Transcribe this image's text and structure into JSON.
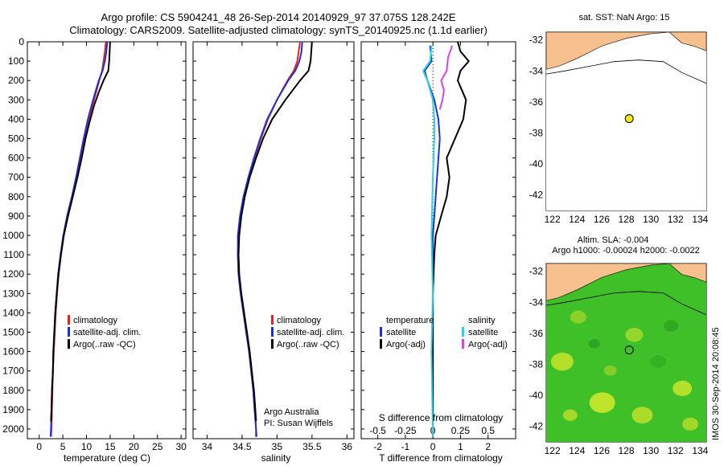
{
  "header": {
    "title_line1": "Argo profile: CS 5904241_48 26-Sep-2014 20140929_97 37.075S 128.242E",
    "title_line2": "Climatology: CARS2009. Satellite-adjusted climatology: synTS_20140925.nc (1.1d earlier)"
  },
  "colors": {
    "climatology": "#e8231e",
    "satellite_adj": "#1f2fd6",
    "argo": "#000000",
    "satellite_salinity": "#27d3e6",
    "argo_salinity_adj": "#e23ee0",
    "land": "#f7c08f",
    "marker_yellow": "#f0e61a"
  },
  "panels": {
    "temp": {
      "xlabel": "temperature (deg C)",
      "legend": [
        "climatology",
        "satellite-adj. clim.",
        "Argo(..raw -QC)"
      ]
    },
    "sal": {
      "xlabel": "salinity",
      "legend": [
        "climatology",
        "satellite-adj. clim.",
        "Argo(..raw -QC)"
      ],
      "credit_line1": "Argo Australia",
      "credit_line2": "PI: Susan Wijffels"
    },
    "diff": {
      "xlabel": "T difference from climatology",
      "s_label": "S difference from climatology",
      "legend_temperature_heading": "temperature",
      "legend_salinity_heading": "salinity",
      "legend_t_items": [
        "satellite",
        "Argo(-adj)"
      ],
      "legend_s_items": [
        "satellite",
        "Argo(-adj)"
      ]
    },
    "map_sst": {
      "title": "sat. SST: NaN Argo: 15"
    },
    "map_sla": {
      "title_line1": "Altim. SLA: -0.004",
      "title_line2": "Argo h1000: -0.00024 h2000: -0.0022",
      "side_label": "IMOS 30-Sep-2014 20:08:45"
    }
  },
  "chart_data": [
    {
      "type": "line",
      "title": "",
      "xlabel": "temperature (deg C)",
      "ylabel": "",
      "xlim": [
        -2.5,
        31
      ],
      "ylim": [
        2050,
        0
      ],
      "xticks": [
        0,
        5,
        10,
        15,
        20,
        25,
        30
      ],
      "yticks": [
        0,
        100,
        200,
        300,
        400,
        500,
        600,
        700,
        800,
        900,
        1000,
        1100,
        1200,
        1300,
        1400,
        1500,
        1600,
        1700,
        1800,
        1900,
        2000
      ],
      "series": [
        {
          "name": "climatology",
          "color": "#e8231e",
          "points": [
            [
              14.1,
              0
            ],
            [
              13.9,
              50
            ],
            [
              13.6,
              100
            ],
            [
              13.3,
              150
            ],
            [
              12.7,
              200
            ],
            [
              11.6,
              300
            ],
            [
              10.5,
              400
            ],
            [
              9.6,
              500
            ],
            [
              8.8,
              600
            ],
            [
              8.0,
              700
            ],
            [
              7.0,
              800
            ],
            [
              6.0,
              900
            ],
            [
              5.2,
              1000
            ],
            [
              4.6,
              1100
            ],
            [
              4.1,
              1200
            ],
            [
              3.8,
              1300
            ],
            [
              3.5,
              1400
            ],
            [
              3.3,
              1500
            ],
            [
              3.1,
              1600
            ],
            [
              2.9,
              1700
            ],
            [
              2.8,
              1800
            ],
            [
              2.7,
              1900
            ],
            [
              2.6,
              2000
            ],
            [
              2.5,
              2040
            ]
          ]
        },
        {
          "name": "satellite-adj. clim.",
          "color": "#1f2fd6",
          "points": [
            [
              14.4,
              0
            ],
            [
              14.2,
              50
            ],
            [
              13.9,
              100
            ],
            [
              13.4,
              150
            ],
            [
              12.6,
              200
            ],
            [
              11.4,
              300
            ],
            [
              10.3,
              400
            ],
            [
              9.4,
              500
            ],
            [
              8.6,
              600
            ],
            [
              7.8,
              700
            ],
            [
              6.9,
              800
            ],
            [
              5.9,
              900
            ],
            [
              5.1,
              1000
            ],
            [
              4.5,
              1100
            ],
            [
              4.0,
              1200
            ],
            [
              3.7,
              1300
            ],
            [
              3.4,
              1400
            ],
            [
              3.2,
              1500
            ],
            [
              3.0,
              1600
            ],
            [
              2.9,
              1700
            ],
            [
              2.7,
              1800
            ],
            [
              2.6,
              1900
            ],
            [
              2.5,
              2000
            ],
            [
              2.4,
              2040
            ]
          ]
        },
        {
          "name": "Argo(..raw -QC)",
          "color": "#000000",
          "points": [
            [
              15.0,
              0
            ],
            [
              14.8,
              100
            ],
            [
              14.6,
              150
            ],
            [
              13.6,
              200
            ],
            [
              12.6,
              260
            ],
            [
              11.6,
              330
            ],
            [
              10.6,
              420
            ],
            [
              9.8,
              500
            ],
            [
              9.0,
              600
            ],
            [
              8.1,
              700
            ],
            [
              7.1,
              800
            ],
            [
              6.1,
              900
            ],
            [
              5.2,
              1000
            ],
            [
              4.6,
              1100
            ],
            [
              4.1,
              1200
            ],
            [
              3.7,
              1300
            ],
            [
              3.4,
              1400
            ],
            [
              3.2,
              1500
            ],
            [
              3.0,
              1600
            ],
            [
              2.9,
              1700
            ],
            [
              2.7,
              1800
            ],
            [
              2.6,
              1900
            ],
            [
              2.5,
              1960
            ]
          ]
        }
      ]
    },
    {
      "type": "line",
      "title": "",
      "xlabel": "salinity",
      "ylabel": "",
      "xlim": [
        33.8,
        36.1
      ],
      "ylim": [
        2050,
        0
      ],
      "xticks": [
        34,
        34.5,
        35,
        35.5,
        36
      ],
      "series": [
        {
          "name": "climatology",
          "color": "#e8231e",
          "points": [
            [
              35.33,
              0
            ],
            [
              35.31,
              50
            ],
            [
              35.29,
              100
            ],
            [
              35.24,
              150
            ],
            [
              35.15,
              200
            ],
            [
              35.0,
              300
            ],
            [
              34.87,
              400
            ],
            [
              34.77,
              500
            ],
            [
              34.68,
              600
            ],
            [
              34.6,
              700
            ],
            [
              34.53,
              800
            ],
            [
              34.48,
              900
            ],
            [
              34.45,
              1000
            ],
            [
              34.44,
              1100
            ],
            [
              34.45,
              1200
            ],
            [
              34.48,
              1300
            ],
            [
              34.52,
              1400
            ],
            [
              34.56,
              1500
            ],
            [
              34.6,
              1600
            ],
            [
              34.63,
              1700
            ],
            [
              34.66,
              1800
            ],
            [
              34.68,
              1900
            ],
            [
              34.7,
              2000
            ],
            [
              34.71,
              2040
            ]
          ]
        },
        {
          "name": "satellite-adj. clim.",
          "color": "#1f2fd6",
          "points": [
            [
              35.36,
              0
            ],
            [
              35.35,
              50
            ],
            [
              35.32,
              100
            ],
            [
              35.26,
              150
            ],
            [
              35.16,
              200
            ],
            [
              35.0,
              300
            ],
            [
              34.86,
              400
            ],
            [
              34.76,
              500
            ],
            [
              34.67,
              600
            ],
            [
              34.59,
              700
            ],
            [
              34.52,
              800
            ],
            [
              34.47,
              900
            ],
            [
              34.44,
              1000
            ],
            [
              34.44,
              1100
            ],
            [
              34.45,
              1200
            ],
            [
              34.48,
              1300
            ],
            [
              34.52,
              1400
            ],
            [
              34.56,
              1500
            ],
            [
              34.6,
              1600
            ],
            [
              34.63,
              1700
            ],
            [
              34.66,
              1800
            ],
            [
              34.68,
              1900
            ],
            [
              34.7,
              2000
            ],
            [
              34.7,
              2040
            ]
          ]
        },
        {
          "name": "Argo(..raw -QC)",
          "color": "#000000",
          "points": [
            [
              35.5,
              0
            ],
            [
              35.48,
              100
            ],
            [
              35.45,
              150
            ],
            [
              35.33,
              200
            ],
            [
              35.12,
              300
            ],
            [
              34.93,
              400
            ],
            [
              34.8,
              500
            ],
            [
              34.7,
              600
            ],
            [
              34.61,
              700
            ],
            [
              34.54,
              800
            ],
            [
              34.49,
              900
            ],
            [
              34.46,
              1000
            ],
            [
              34.45,
              1100
            ],
            [
              34.46,
              1200
            ],
            [
              34.49,
              1300
            ],
            [
              34.53,
              1400
            ],
            [
              34.57,
              1500
            ],
            [
              34.61,
              1600
            ],
            [
              34.64,
              1700
            ],
            [
              34.67,
              1800
            ],
            [
              34.69,
              1900
            ],
            [
              34.7,
              1960
            ]
          ]
        }
      ]
    },
    {
      "type": "line",
      "title": "",
      "xlabel": "T difference from climatology",
      "x2label": "S difference from climatology",
      "xlim": [
        -2.6,
        3.0
      ],
      "ylim": [
        2050,
        0
      ],
      "xticks": [
        -2,
        -1,
        0,
        1,
        2
      ],
      "x2ticks": [
        -0.5,
        -0.25,
        0,
        0.25,
        0.5
      ],
      "series": [
        {
          "name": "temperature satellite",
          "color": "#1f2fd6",
          "points": [
            [
              -0.1,
              20
            ],
            [
              -0.05,
              100
            ],
            [
              -0.3,
              150
            ],
            [
              -0.2,
              200
            ],
            [
              0.05,
              300
            ],
            [
              0.2,
              400
            ],
            [
              0.25,
              500
            ],
            [
              0.2,
              600
            ],
            [
              0.15,
              700
            ],
            [
              0.1,
              800
            ],
            [
              0.05,
              900
            ],
            [
              0.0,
              1000
            ],
            [
              0.0,
              1200
            ],
            [
              0.0,
              1500
            ],
            [
              0.0,
              1800
            ],
            [
              0.0,
              2040
            ]
          ]
        },
        {
          "name": "temperature Argo(-adj)",
          "color": "#000000",
          "points": [
            [
              0.9,
              0
            ],
            [
              1.0,
              50
            ],
            [
              1.3,
              100
            ],
            [
              1.0,
              150
            ],
            [
              0.9,
              200
            ],
            [
              1.2,
              300
            ],
            [
              1.1,
              400
            ],
            [
              0.8,
              500
            ],
            [
              0.5,
              600
            ],
            [
              0.6,
              700
            ],
            [
              0.5,
              800
            ],
            [
              0.3,
              900
            ],
            [
              0.1,
              1000
            ],
            [
              0.05,
              1100
            ],
            [
              0.0,
              1300
            ],
            [
              0.0,
              1600
            ],
            [
              0.0,
              1960
            ]
          ]
        },
        {
          "name": "salinity satellite",
          "color": "#27d3e6",
          "points": [
            [
              -0.05,
              20
            ],
            [
              -0.1,
              100
            ],
            [
              -0.35,
              150
            ],
            [
              -0.2,
              200
            ],
            [
              0.0,
              300
            ],
            [
              0.05,
              400
            ],
            [
              0.05,
              500
            ],
            [
              0.0,
              700
            ],
            [
              -0.05,
              1000
            ],
            [
              0.0,
              1300
            ],
            [
              -0.05,
              1600
            ],
            [
              0.0,
              2040
            ]
          ]
        },
        {
          "name": "salinity Argo(-adj)",
          "color": "#e23ee0",
          "points": [
            [
              0.7,
              20
            ],
            [
              0.55,
              80
            ],
            [
              0.5,
              150
            ],
            [
              0.3,
              200
            ],
            [
              0.4,
              250
            ],
            [
              0.35,
              300
            ],
            [
              0.25,
              350
            ]
          ]
        }
      ]
    },
    {
      "type": "scatter",
      "title": "sat. SST: NaN Argo: 15",
      "xlim": [
        121.5,
        134.5
      ],
      "ylim": [
        -43,
        -31.5
      ],
      "xticks": [
        122,
        124,
        126,
        128,
        130,
        132,
        134
      ],
      "yticks": [
        -32,
        -34,
        -36,
        -38,
        -40,
        -42
      ],
      "x": [
        128.242
      ],
      "y": [
        -37.075
      ]
    },
    {
      "type": "heatmap",
      "title": "Altim. SLA: -0.004",
      "xlim": [
        121.5,
        134.5
      ],
      "ylim": [
        -43,
        -31.5
      ],
      "xticks": [
        122,
        124,
        126,
        128,
        130,
        132,
        134
      ],
      "yticks": [
        -32,
        -34,
        -36,
        -38,
        -40,
        -42
      ],
      "x": [
        128.242
      ],
      "y": [
        -37.075
      ]
    }
  ]
}
